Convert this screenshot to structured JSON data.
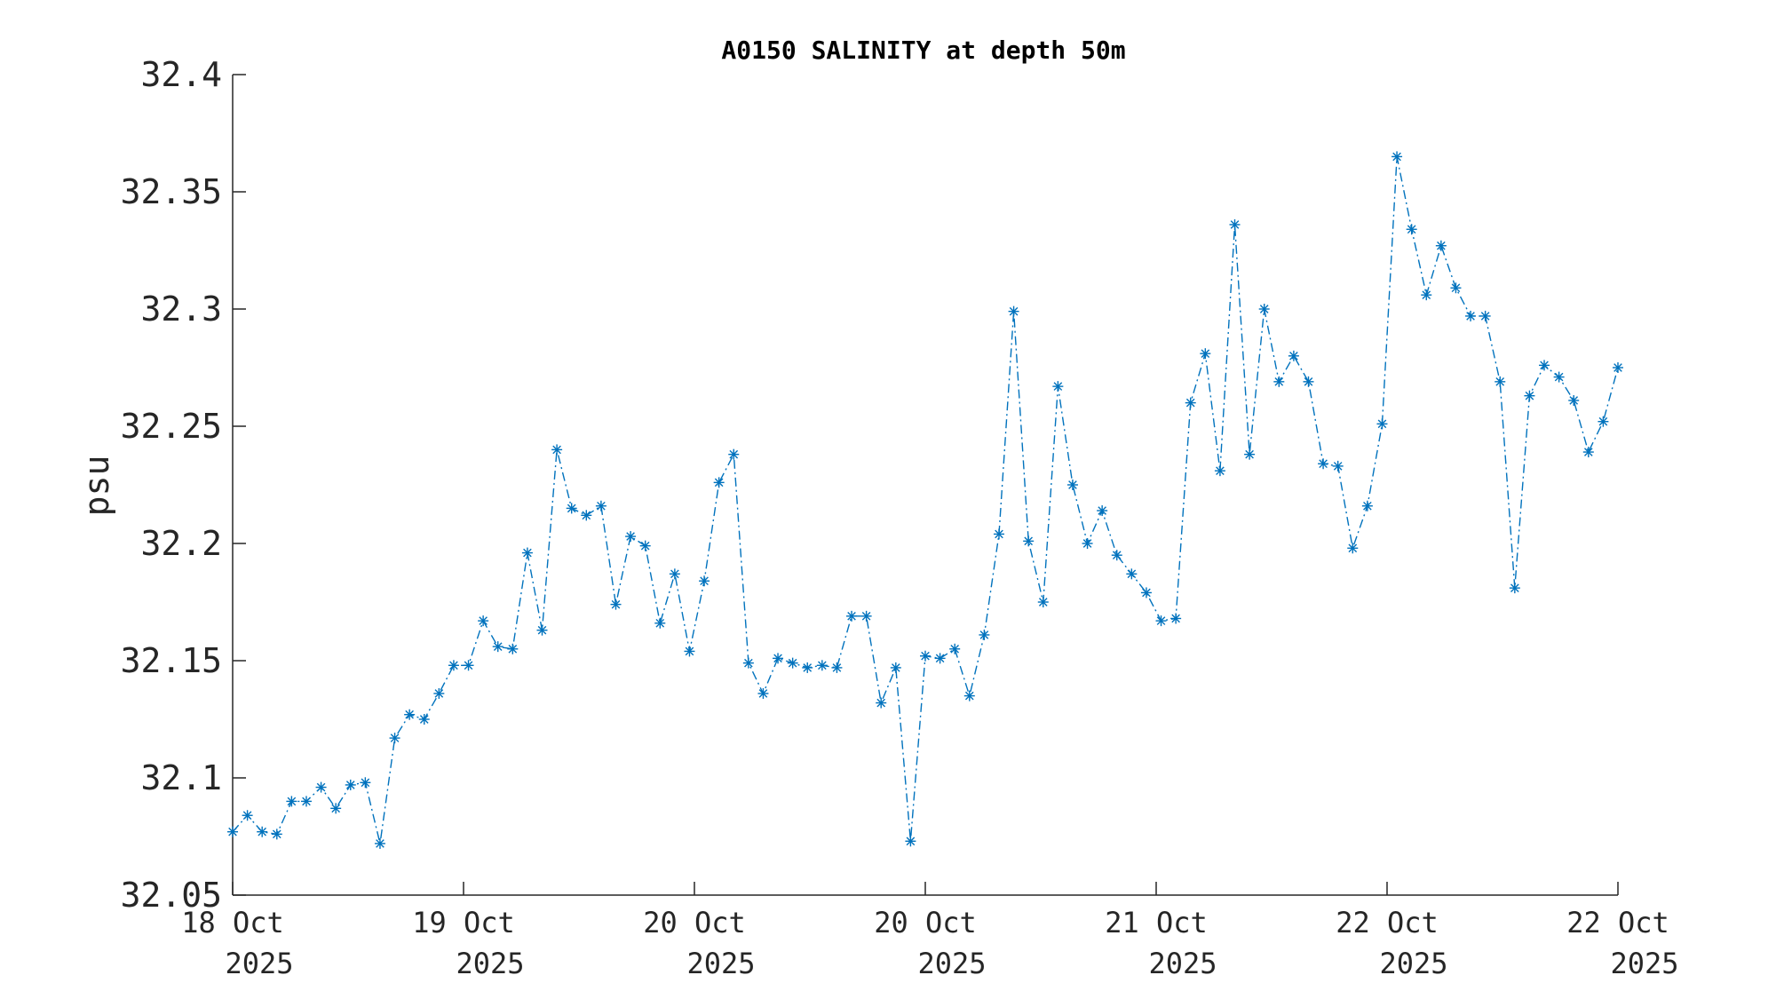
{
  "chart_data": {
    "type": "line",
    "title": "A0150 SALINITY at depth 50m",
    "xlabel": "",
    "ylabel": "psu",
    "ylim": [
      32.05,
      32.4
    ],
    "yticks": [
      32.05,
      32.1,
      32.15,
      32.2,
      32.25,
      32.3,
      32.35,
      32.4
    ],
    "ytick_labels": [
      "32.05",
      "32.1",
      "32.15",
      "32.2",
      "32.25",
      "32.3",
      "32.35",
      "32.4"
    ],
    "xticks": [
      {
        "day": "18 Oct",
        "year": "2025"
      },
      {
        "day": "19 Oct",
        "year": "2025"
      },
      {
        "day": "20 Oct",
        "year": "2025"
      },
      {
        "day": "20 Oct",
        "year": "2025"
      },
      {
        "day": "21 Oct",
        "year": "2025"
      },
      {
        "day": "22 Oct",
        "year": "2025"
      },
      {
        "day": "22 Oct",
        "year": "2025"
      }
    ],
    "line_style": "dash-dot",
    "marker": "asterisk",
    "color": "#0072BD",
    "grid": false,
    "series": [
      {
        "values": [
          32.077,
          32.084,
          32.077,
          32.076,
          32.09,
          32.09,
          32.096,
          32.087,
          32.097,
          32.098,
          32.072,
          32.117,
          32.127,
          32.125,
          32.136,
          32.148,
          32.148,
          32.167,
          32.156,
          32.155,
          32.196,
          32.163,
          32.24,
          32.215,
          32.212,
          32.216,
          32.174,
          32.203,
          32.199,
          32.166,
          32.187,
          32.154,
          32.184,
          32.226,
          32.238,
          32.149,
          32.136,
          32.151,
          32.149,
          32.147,
          32.148,
          32.147,
          32.169,
          32.169,
          32.132,
          32.147,
          32.073,
          32.152,
          32.151,
          32.155,
          32.135,
          32.161,
          32.204,
          32.299,
          32.201,
          32.175,
          32.267,
          32.225,
          32.2,
          32.214,
          32.195,
          32.187,
          32.179,
          32.167,
          32.168,
          32.26,
          32.281,
          32.231,
          32.336,
          32.238,
          32.3,
          32.269,
          32.28,
          32.269,
          32.234,
          32.233,
          32.198,
          32.216,
          32.251,
          32.365,
          32.334,
          32.306,
          32.327,
          32.309,
          32.297,
          32.297,
          32.269,
          32.181,
          32.263,
          32.276,
          32.271,
          32.261,
          32.239,
          32.252,
          32.275
        ]
      }
    ]
  }
}
